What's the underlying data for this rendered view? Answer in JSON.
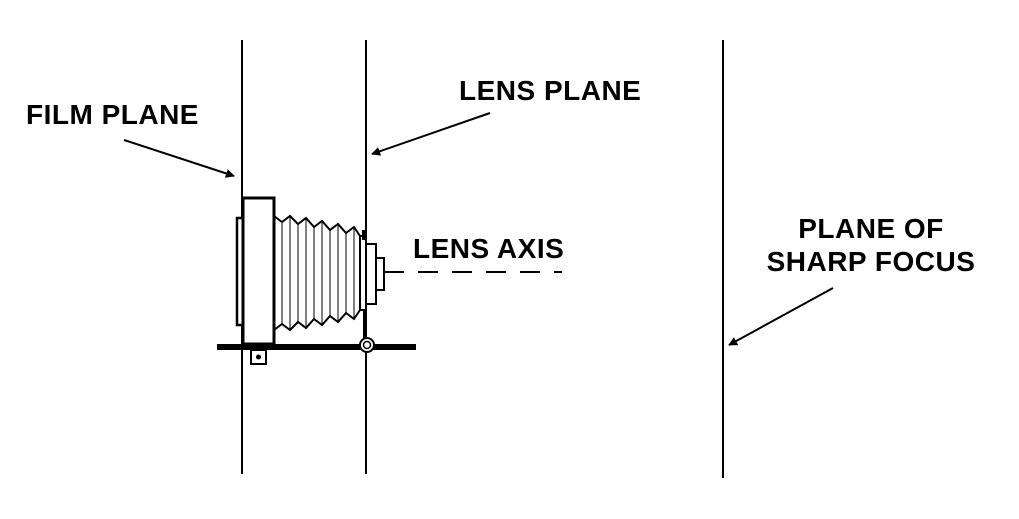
{
  "labels": {
    "film_plane": "FILM PLANE",
    "lens_plane": "LENS PLANE",
    "lens_axis": "LENS AXIS",
    "plane_of_sharp_focus_line1": "PLANE OF",
    "plane_of_sharp_focus_line2": "SHARP FOCUS"
  },
  "colors": {
    "ink": "#000000",
    "background": "#ffffff"
  }
}
